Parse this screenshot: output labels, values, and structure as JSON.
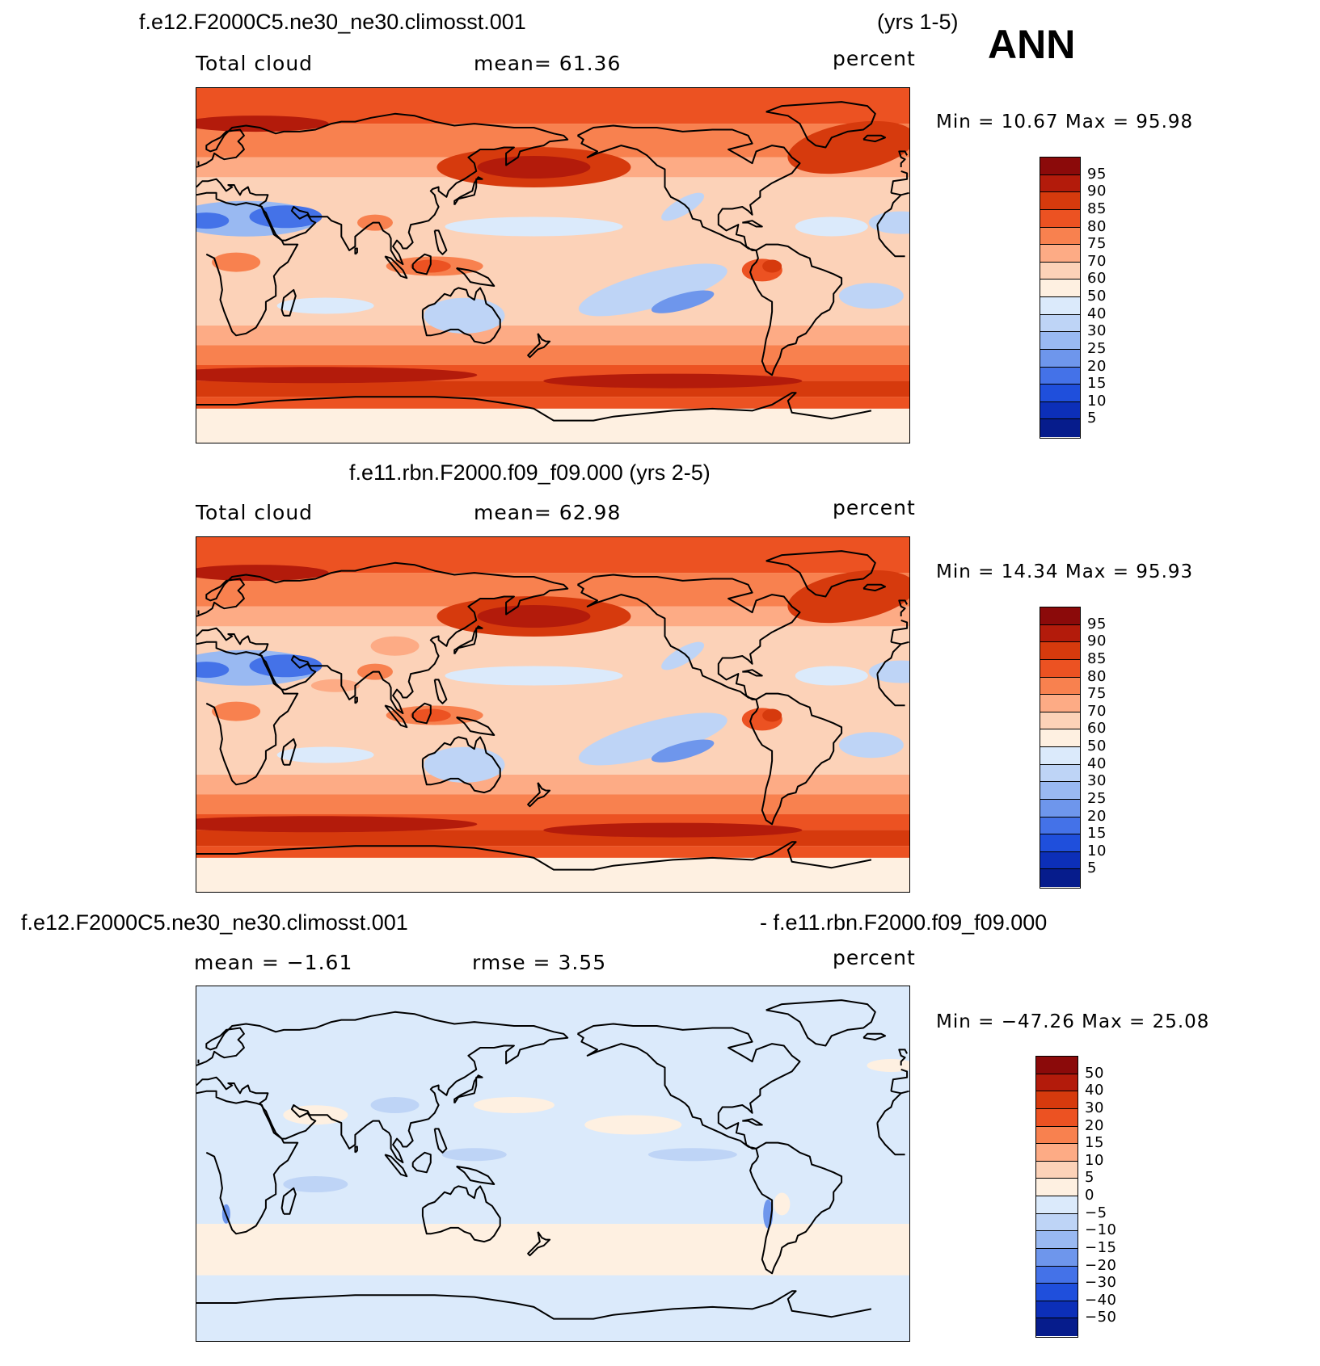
{
  "header": {
    "case1": "f.e12.F2000C5.ne30_ne30.climosst.001",
    "years1": "(yrs 1-5)",
    "season": "ANN"
  },
  "panels": [
    {
      "variable": "Total cloud",
      "stat1": "mean=   61.36",
      "units": "percent",
      "minmax": "Min =   10.67  Max =   95.98",
      "legend_labels": [
        "95",
        "90",
        "85",
        "80",
        "75",
        "70",
        "60",
        "50",
        "40",
        "30",
        "25",
        "20",
        "15",
        "10",
        "5"
      ]
    },
    {
      "title": "f.e11.rbn.F2000.f09_f09.000 (yrs 2-5)",
      "variable": "Total cloud",
      "stat1": "mean=   62.98",
      "units": "percent",
      "minmax": "Min =   14.34  Max =   95.93",
      "legend_labels": [
        "95",
        "90",
        "85",
        "80",
        "75",
        "70",
        "60",
        "50",
        "40",
        "30",
        "25",
        "20",
        "15",
        "10",
        "5"
      ]
    },
    {
      "title_left": "f.e12.F2000C5.ne30_ne30.climosst.001",
      "title_right": "- f.e11.rbn.F2000.f09_f09.000",
      "stat1": "mean =   −1.61",
      "stat2": "rmse =     3.55",
      "units": "percent",
      "minmax": "Min = −47.26  Max =   25.08",
      "legend_labels": [
        "50",
        "40",
        "30",
        "20",
        "15",
        "10",
        "5",
        "0",
        "−5",
        "−10",
        "−15",
        "−20",
        "−30",
        "−40",
        "−50"
      ]
    }
  ],
  "colors": {
    "scale_top_to_bottom": [
      "#8b0a0a",
      "#b31b0b",
      "#d63a0d",
      "#ec5222",
      "#f8814f",
      "#fdab85",
      "#fcd2b8",
      "#fef0e1",
      "#dbeafb",
      "#bed4f6",
      "#99b9f2",
      "#6e96ec",
      "#4472e8",
      "#1f4fdc",
      "#0c2fb8",
      "#061c8c"
    ],
    "coastline": "#000000"
  }
}
